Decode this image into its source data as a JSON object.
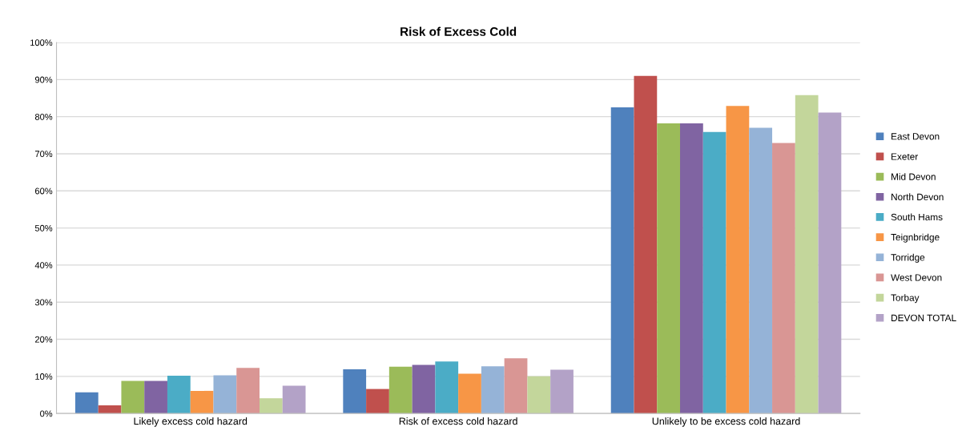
{
  "chart_data": {
    "type": "bar",
    "title": "Risk of Excess Cold",
    "categories": [
      "Likely excess cold hazard",
      "Risk of excess cold hazard",
      "Unlikely to be excess cold hazard"
    ],
    "series": [
      {
        "name": "East Devon",
        "color": "#4f81bd",
        "values": [
          5.7,
          11.9,
          82.5
        ]
      },
      {
        "name": "Exeter",
        "color": "#c0504d",
        "values": [
          2.2,
          6.6,
          91.0
        ]
      },
      {
        "name": "Mid Devon",
        "color": "#9bbb59",
        "values": [
          8.8,
          12.6,
          78.2
        ]
      },
      {
        "name": "North Devon",
        "color": "#8064a2",
        "values": [
          8.8,
          13.1,
          78.2
        ]
      },
      {
        "name": "South Hams",
        "color": "#4bacc6",
        "values": [
          10.2,
          14.0,
          75.9
        ]
      },
      {
        "name": "Teignbridge",
        "color": "#f79646",
        "values": [
          6.1,
          10.7,
          82.9
        ]
      },
      {
        "name": "Torridge",
        "color": "#95b3d7",
        "values": [
          10.3,
          12.7,
          77.0
        ]
      },
      {
        "name": "West Devon",
        "color": "#d99694",
        "values": [
          12.3,
          14.9,
          72.9
        ]
      },
      {
        "name": "Torbay",
        "color": "#c3d69b",
        "values": [
          4.1,
          10.0,
          85.8
        ]
      },
      {
        "name": "DEVON TOTAL",
        "color": "#b3a2c7",
        "values": [
          7.5,
          11.8,
          81.1
        ]
      }
    ],
    "ylim": [
      0,
      100
    ],
    "yticks": [
      {
        "value": 0,
        "label": "0%"
      },
      {
        "value": 10,
        "label": "10%"
      },
      {
        "value": 20,
        "label": "20%"
      },
      {
        "value": 30,
        "label": "30%"
      },
      {
        "value": 40,
        "label": "40%"
      },
      {
        "value": 50,
        "label": "50%"
      },
      {
        "value": 60,
        "label": "60%"
      },
      {
        "value": 70,
        "label": "70%"
      },
      {
        "value": 80,
        "label": "80%"
      },
      {
        "value": 90,
        "label": "90%"
      },
      {
        "value": 100,
        "label": "100%"
      }
    ],
    "grid": "y",
    "legend": "right"
  }
}
